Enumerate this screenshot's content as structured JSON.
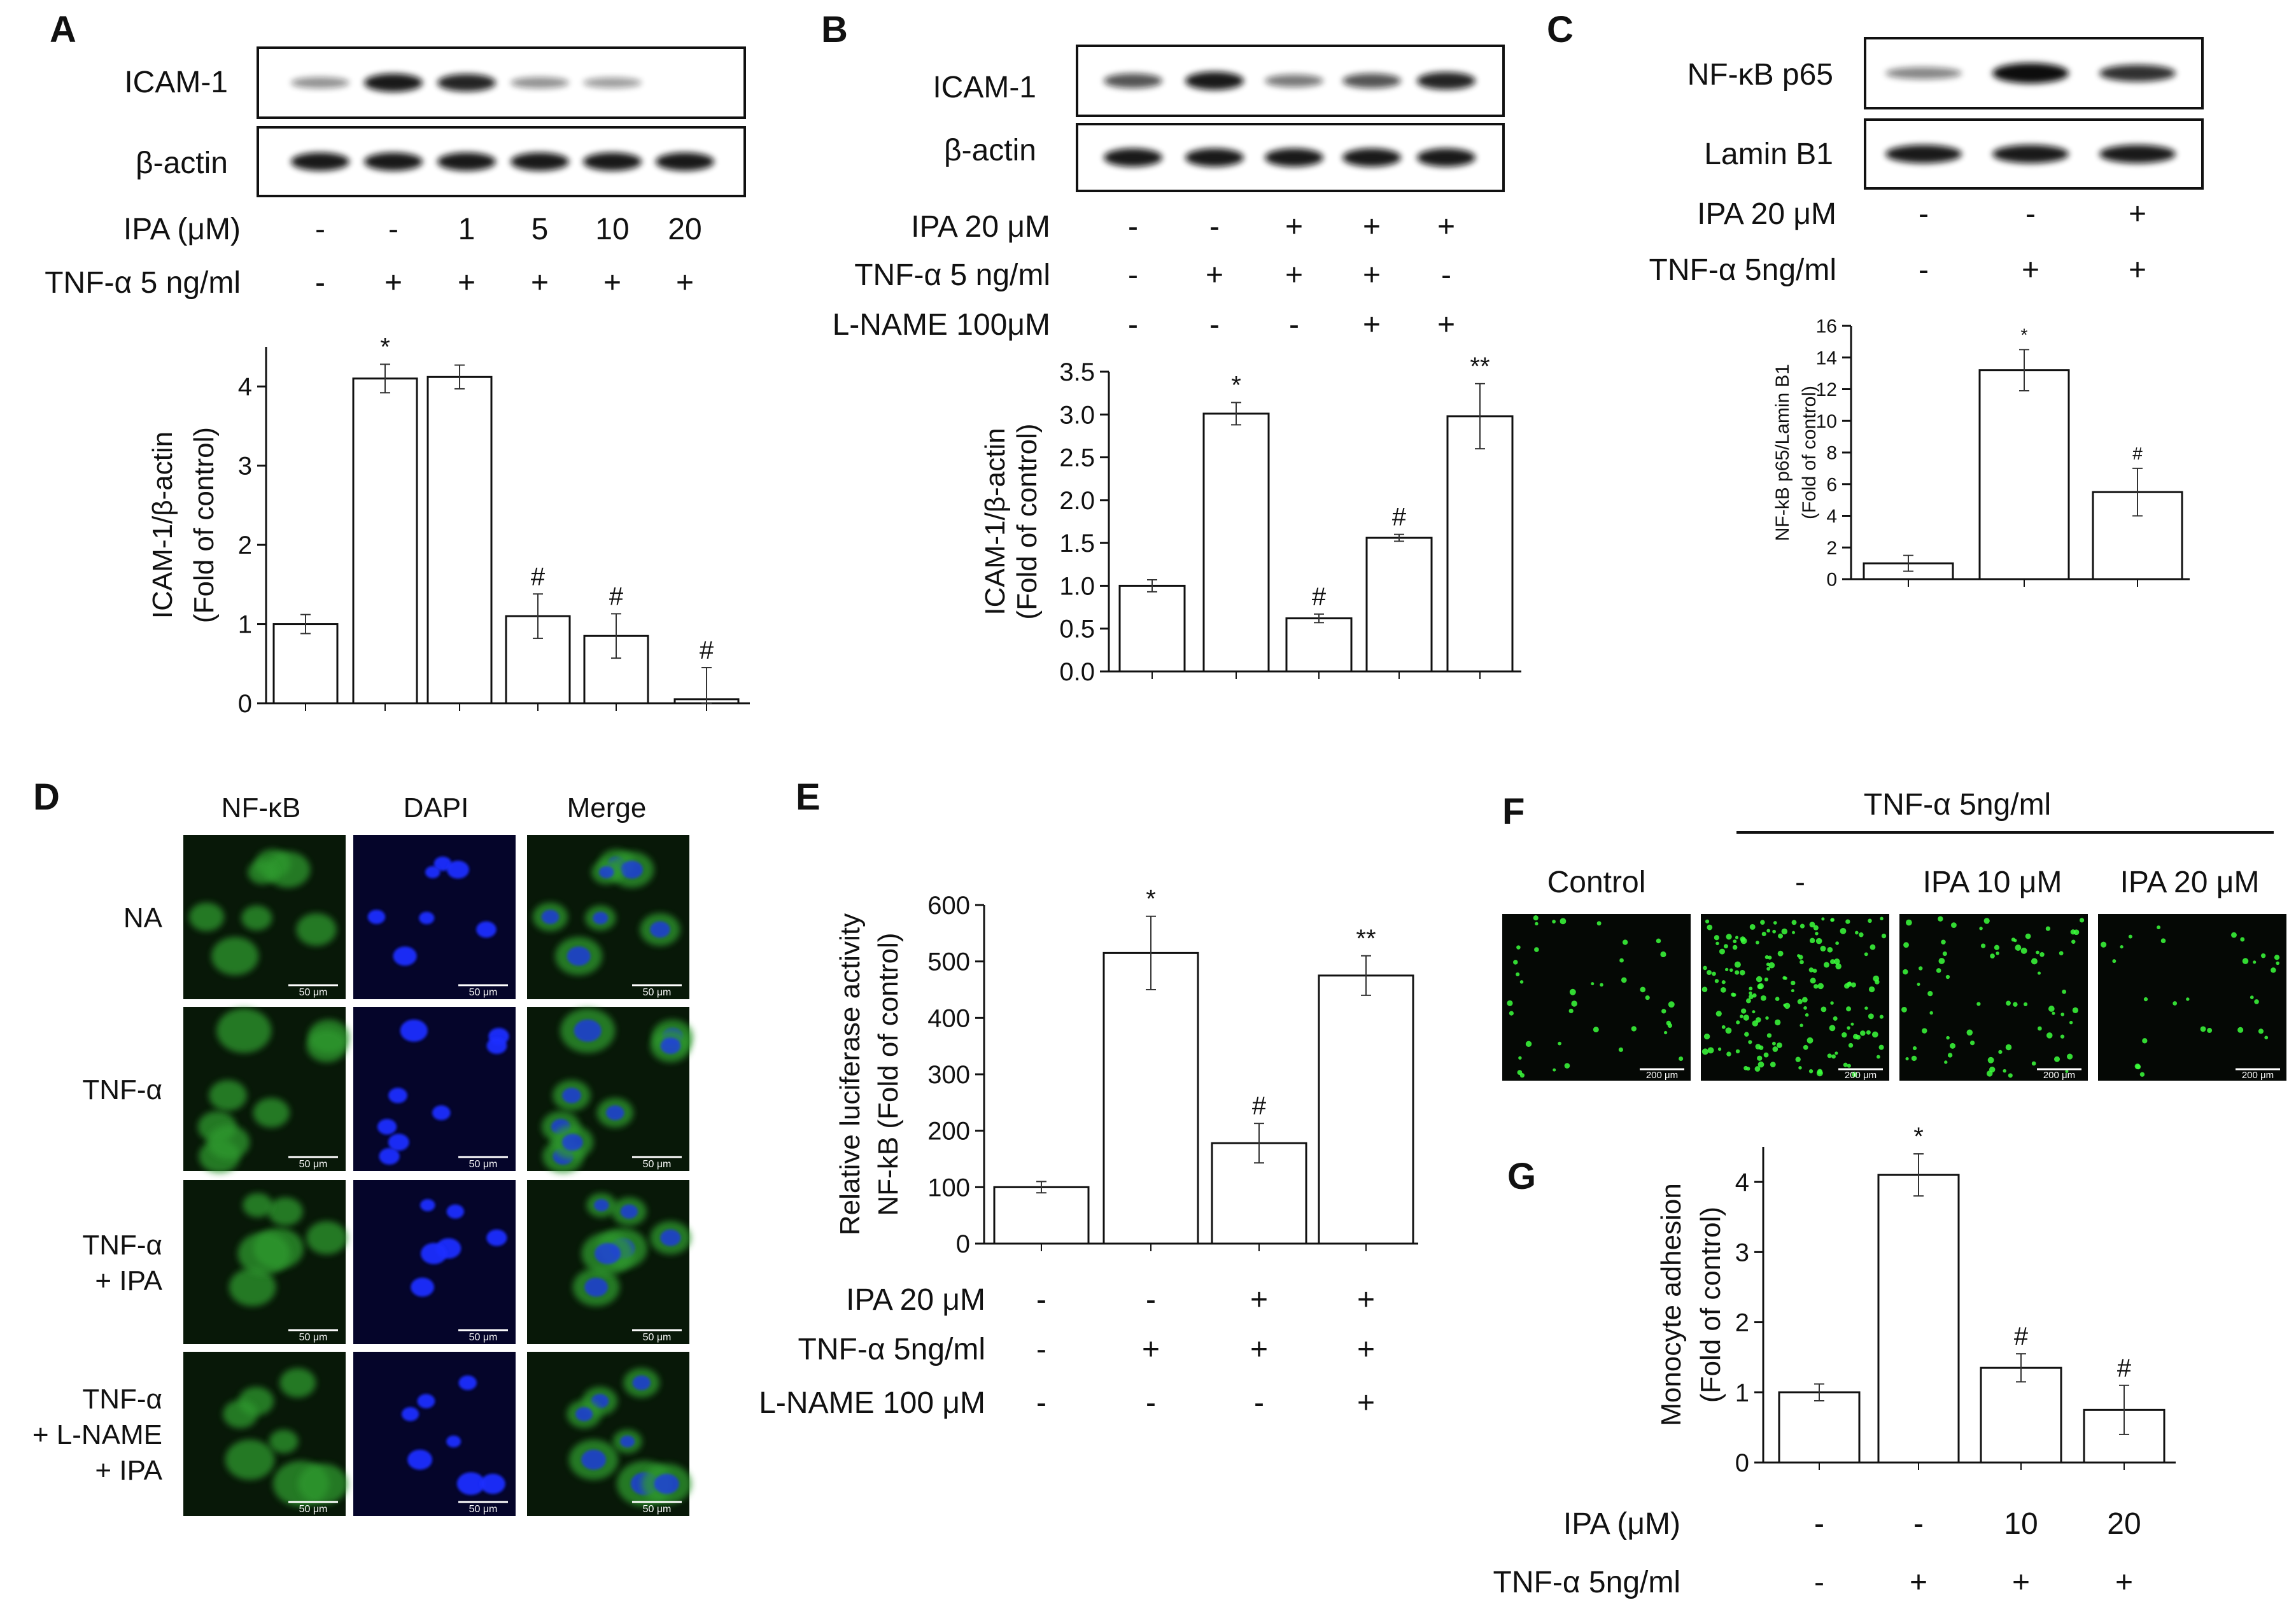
{
  "panels": [
    {
      "id": "A",
      "blot_labels": [
        "ICAM-1",
        "β-actin"
      ],
      "conditions": [
        {
          "label": "IPA (μM)",
          "values": [
            "-",
            "-",
            "1",
            "5",
            "10",
            "20"
          ]
        },
        {
          "label": "TNF-α 5 ng/ml",
          "values": [
            "-",
            "+",
            "+",
            "+",
            "+",
            "+"
          ]
        }
      ],
      "blots": [
        {
          "intensities": [
            0.35,
            0.85,
            0.8,
            0.35,
            0.3,
            0.0
          ]
        },
        {
          "intensities": [
            0.85,
            0.85,
            0.85,
            0.85,
            0.85,
            0.85
          ]
        }
      ],
      "chart_data": {
        "type": "bar",
        "categories": [
          "-/-",
          "-/+",
          "1/+",
          "5/+",
          "10/+",
          "20/+"
        ],
        "values": [
          1.0,
          4.1,
          4.12,
          1.1,
          0.85,
          0.05
        ],
        "errors": [
          0.12,
          0.18,
          0.15,
          0.28,
          0.28,
          0.4
        ],
        "annotations": [
          "",
          "*",
          "",
          "#",
          "#",
          "#"
        ],
        "ylabel_lines": [
          "ICAM-1/β-actin",
          "(Fold of control)"
        ],
        "ylim": [
          0,
          4.5
        ],
        "yticks": [
          0,
          1,
          2,
          3,
          4
        ]
      }
    },
    {
      "id": "B",
      "blot_labels": [
        "ICAM-1",
        "β-actin"
      ],
      "conditions": [
        {
          "label": "IPA 20 μM",
          "values": [
            "-",
            "-",
            "+",
            "+",
            "+"
          ]
        },
        {
          "label": "TNF-α 5 ng/ml",
          "values": [
            "-",
            "+",
            "+",
            "+",
            "-"
          ]
        },
        {
          "label": "L-NAME 100μM",
          "values": [
            "-",
            "-",
            "-",
            "+",
            "+"
          ]
        }
      ],
      "blots": [
        {
          "intensities": [
            0.6,
            0.85,
            0.45,
            0.6,
            0.8
          ]
        },
        {
          "intensities": [
            0.85,
            0.85,
            0.85,
            0.85,
            0.85
          ]
        }
      ],
      "chart_data": {
        "type": "bar",
        "categories": [
          "1",
          "2",
          "3",
          "4",
          "5"
        ],
        "values": [
          1.0,
          3.01,
          0.62,
          1.56,
          2.98
        ],
        "errors": [
          0.07,
          0.13,
          0.05,
          0.04,
          0.38
        ],
        "annotations": [
          "",
          "*",
          "#",
          "#",
          "**"
        ],
        "ylabel_lines": [
          "ICAM-1/β-actin",
          "(Fold of control)"
        ],
        "ylim": [
          0,
          3.5
        ],
        "yticks": [
          "0.0",
          "0.5",
          "1.0",
          "1.5",
          "2.0",
          "2.5",
          "3.0",
          "3.5"
        ]
      }
    },
    {
      "id": "C",
      "blot_labels": [
        "NF-κB p65",
        "Lamin B1"
      ],
      "conditions": [
        {
          "label": "IPA 20 μM",
          "values": [
            "-",
            "-",
            "+"
          ]
        },
        {
          "label": "TNF-α 5ng/ml",
          "values": [
            "-",
            "+",
            "+"
          ]
        }
      ],
      "blots": [
        {
          "intensities": [
            0.4,
            1.0,
            0.75
          ]
        },
        {
          "intensities": [
            0.85,
            0.85,
            0.85
          ]
        }
      ],
      "chart_data": {
        "type": "bar",
        "categories": [
          "1",
          "2",
          "3"
        ],
        "values": [
          1.0,
          13.2,
          5.5
        ],
        "errors": [
          0.5,
          1.3,
          1.5
        ],
        "annotations": [
          "",
          "*",
          "#"
        ],
        "ylabel_lines": [
          "NF-kB p65/Lamin B1",
          "(Fold of control)"
        ],
        "ylim": [
          0,
          16
        ],
        "yticks": [
          0,
          2,
          4,
          6,
          8,
          10,
          12,
          14,
          16
        ]
      }
    },
    {
      "id": "D",
      "columns": [
        "NF-κB",
        "DAPI",
        "Merge"
      ],
      "rows": [
        "NA",
        "TNF-α",
        "TNF-α|+ IPA",
        "TNF-α|+ L-NAME|+ IPA"
      ],
      "scalebar": "50 μm"
    },
    {
      "id": "E",
      "conditions": [
        {
          "label": "IPA 20 μM",
          "values": [
            "-",
            "-",
            "+",
            "+"
          ]
        },
        {
          "label": "TNF-α 5ng/ml",
          "values": [
            "-",
            "+",
            "+",
            "+"
          ]
        },
        {
          "label": "L-NAME 100 μM",
          "values": [
            "-",
            "-",
            "-",
            "+"
          ]
        }
      ],
      "chart_data": {
        "type": "bar",
        "categories": [
          "1",
          "2",
          "3",
          "4"
        ],
        "values": [
          100,
          515,
          178,
          475
        ],
        "errors": [
          10,
          65,
          35,
          35
        ],
        "annotations": [
          "",
          "*",
          "#",
          "**"
        ],
        "ylabel_lines": [
          "Relative luciferase activity",
          "NF-kB (Fold of control)"
        ],
        "ylim": [
          0,
          600
        ],
        "yticks": [
          0,
          100,
          200,
          300,
          400,
          500,
          600
        ]
      }
    },
    {
      "id": "F",
      "header": "TNF-α 5ng/ml",
      "image_labels": [
        "Control",
        "-",
        "IPA 10 μM",
        "IPA 20 μM"
      ],
      "scalebar": "200 μm"
    },
    {
      "id": "G",
      "conditions": [
        {
          "label": "IPA (μM)",
          "values": [
            "-",
            "-",
            "10",
            "20"
          ]
        },
        {
          "label": "TNF-α 5ng/ml",
          "values": [
            "-",
            "+",
            "+",
            "+"
          ]
        }
      ],
      "chart_data": {
        "type": "bar",
        "categories": [
          "1",
          "2",
          "3",
          "4"
        ],
        "values": [
          1.0,
          4.1,
          1.35,
          0.75
        ],
        "errors": [
          0.12,
          0.3,
          0.2,
          0.35
        ],
        "annotations": [
          "",
          "*",
          "#",
          "#"
        ],
        "ylabel_lines": [
          "Monocyte adhesion",
          "(Fold of control)"
        ],
        "ylim": [
          0,
          4.5
        ],
        "yticks": [
          0,
          1,
          2,
          3,
          4
        ]
      }
    }
  ]
}
